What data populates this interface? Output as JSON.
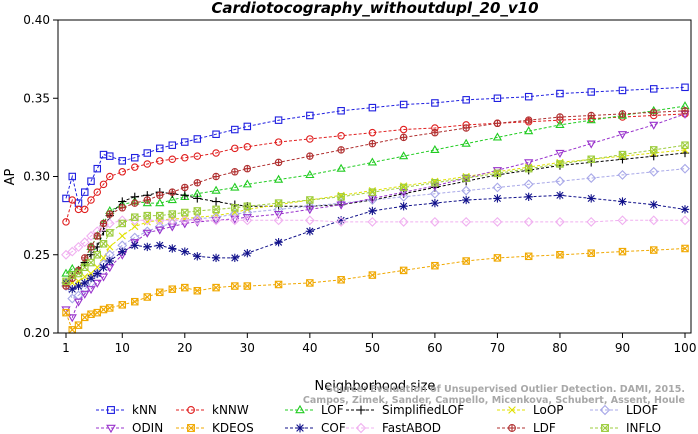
{
  "chart_data": {
    "type": "line",
    "title": "Cardiotocography_withoutdupl_20_v10",
    "xlabel": "Neighborhood size",
    "ylabel": "AP",
    "xlim": [
      1,
      100
    ],
    "ylim": [
      0.2,
      0.4
    ],
    "x_ticks": [
      1,
      10,
      20,
      30,
      40,
      50,
      60,
      70,
      80,
      90,
      100
    ],
    "x_tick_labels": [
      "1",
      "10",
      "20",
      "30",
      "40",
      "50",
      "60",
      "70",
      "80",
      "90",
      "100"
    ],
    "y_ticks": [
      0.2,
      0.25,
      0.3,
      0.35,
      0.4
    ],
    "y_tick_labels": [
      "0.20",
      "0.25",
      "0.30",
      "0.35",
      "0.40"
    ],
    "grid": false,
    "legend_position": "bottom",
    "annotation_line1": "Source: Evaluation of Unsupervised Outlier Detection. DAMI, 2015.",
    "annotation_line2": "Campos, Zimek, Sander, Campello, Micenkova, Schubert, Assent, Houle",
    "x": [
      1,
      2,
      3,
      4,
      5,
      6,
      7,
      8,
      10,
      12,
      14,
      16,
      18,
      20,
      22,
      25,
      28,
      30,
      35,
      40,
      45,
      50,
      55,
      60,
      65,
      70,
      75,
      80,
      85,
      90,
      95,
      100
    ],
    "series": [
      {
        "name": "kNN",
        "color": "#1f1fe0",
        "marker": "square",
        "values": [
          0.286,
          0.3,
          0.283,
          0.29,
          0.297,
          0.305,
          0.314,
          0.313,
          0.31,
          0.312,
          0.315,
          0.318,
          0.32,
          0.322,
          0.324,
          0.327,
          0.33,
          0.332,
          0.336,
          0.339,
          0.342,
          0.344,
          0.346,
          0.347,
          0.349,
          0.35,
          0.351,
          0.353,
          0.354,
          0.355,
          0.356,
          0.357
        ]
      },
      {
        "name": "kNNW",
        "color": "#e01f1f",
        "marker": "circle",
        "values": [
          0.271,
          0.285,
          0.279,
          0.279,
          0.285,
          0.29,
          0.295,
          0.3,
          0.303,
          0.306,
          0.308,
          0.31,
          0.311,
          0.312,
          0.313,
          0.315,
          0.318,
          0.319,
          0.322,
          0.324,
          0.326,
          0.328,
          0.33,
          0.331,
          0.333,
          0.334,
          0.335,
          0.336,
          0.337,
          0.338,
          0.339,
          0.34
        ]
      },
      {
        "name": "LOF",
        "color": "#22cc22",
        "marker": "triangle",
        "values": [
          0.238,
          0.241,
          0.24,
          0.245,
          0.255,
          0.262,
          0.27,
          0.278,
          0.282,
          0.284,
          0.283,
          0.283,
          0.285,
          0.287,
          0.289,
          0.291,
          0.293,
          0.295,
          0.298,
          0.301,
          0.305,
          0.309,
          0.313,
          0.317,
          0.321,
          0.325,
          0.329,
          0.333,
          0.336,
          0.339,
          0.342,
          0.345
        ]
      },
      {
        "name": "SimplifiedLOF",
        "color": "#000000",
        "marker": "plus",
        "values": [
          0.232,
          0.236,
          0.24,
          0.245,
          0.25,
          0.255,
          0.265,
          0.275,
          0.284,
          0.287,
          0.288,
          0.29,
          0.289,
          0.288,
          0.286,
          0.284,
          0.282,
          0.281,
          0.281,
          0.281,
          0.282,
          0.285,
          0.289,
          0.293,
          0.297,
          0.301,
          0.304,
          0.307,
          0.309,
          0.311,
          0.313,
          0.315
        ]
      },
      {
        "name": "LoOP",
        "color": "#e0e000",
        "marker": "cross",
        "values": [
          0.231,
          0.232,
          0.233,
          0.236,
          0.238,
          0.242,
          0.248,
          0.255,
          0.262,
          0.268,
          0.271,
          0.272,
          0.273,
          0.273,
          0.274,
          0.275,
          0.277,
          0.279,
          0.282,
          0.285,
          0.288,
          0.291,
          0.294,
          0.297,
          0.3,
          0.303,
          0.306,
          0.309,
          0.311,
          0.313,
          0.315,
          0.317
        ]
      },
      {
        "name": "LDOF",
        "color": "#a8a8e8",
        "marker": "diamond",
        "values": [
          0.23,
          0.222,
          0.224,
          0.228,
          0.232,
          0.238,
          0.244,
          0.25,
          0.256,
          0.261,
          0.265,
          0.268,
          0.27,
          0.272,
          0.273,
          0.274,
          0.276,
          0.277,
          0.279,
          0.281,
          0.283,
          0.285,
          0.287,
          0.289,
          0.291,
          0.293,
          0.295,
          0.297,
          0.299,
          0.301,
          0.303,
          0.305
        ]
      },
      {
        "name": "ODIN",
        "color": "#9933cc",
        "marker": "triangle-down",
        "values": [
          0.215,
          0.21,
          0.22,
          0.225,
          0.228,
          0.232,
          0.236,
          0.242,
          0.25,
          0.258,
          0.264,
          0.266,
          0.268,
          0.27,
          0.271,
          0.272,
          0.273,
          0.274,
          0.276,
          0.279,
          0.282,
          0.286,
          0.29,
          0.294,
          0.299,
          0.304,
          0.309,
          0.315,
          0.321,
          0.327,
          0.333,
          0.34
        ]
      },
      {
        "name": "KDEOS",
        "color": "#f0a800",
        "marker": "square-x",
        "values": [
          0.213,
          0.202,
          0.205,
          0.21,
          0.212,
          0.213,
          0.215,
          0.216,
          0.218,
          0.22,
          0.223,
          0.226,
          0.228,
          0.229,
          0.227,
          0.229,
          0.23,
          0.23,
          0.231,
          0.232,
          0.234,
          0.237,
          0.24,
          0.243,
          0.246,
          0.248,
          0.249,
          0.25,
          0.251,
          0.252,
          0.253,
          0.254
        ]
      },
      {
        "name": "COF",
        "color": "#10108a",
        "marker": "star",
        "values": [
          0.232,
          0.228,
          0.23,
          0.232,
          0.235,
          0.238,
          0.242,
          0.246,
          0.252,
          0.256,
          0.255,
          0.256,
          0.254,
          0.252,
          0.249,
          0.248,
          0.248,
          0.251,
          0.258,
          0.265,
          0.272,
          0.278,
          0.281,
          0.283,
          0.285,
          0.286,
          0.287,
          0.288,
          0.286,
          0.284,
          0.282,
          0.279
        ]
      },
      {
        "name": "FastABOD",
        "color": "#f0b0f0",
        "marker": "diamond",
        "values": [
          0.25,
          0.252,
          0.255,
          0.258,
          0.262,
          0.265,
          0.268,
          0.27,
          0.272,
          0.272,
          0.272,
          0.272,
          0.272,
          0.272,
          0.272,
          0.272,
          0.272,
          0.272,
          0.272,
          0.272,
          0.271,
          0.271,
          0.271,
          0.271,
          0.271,
          0.271,
          0.271,
          0.271,
          0.271,
          0.272,
          0.272,
          0.272
        ]
      },
      {
        "name": "LDF",
        "color": "#b03030",
        "marker": "circle-plus",
        "values": [
          0.23,
          0.235,
          0.24,
          0.248,
          0.255,
          0.262,
          0.27,
          0.276,
          0.28,
          0.283,
          0.285,
          0.288,
          0.29,
          0.293,
          0.296,
          0.3,
          0.303,
          0.305,
          0.309,
          0.313,
          0.317,
          0.321,
          0.325,
          0.328,
          0.331,
          0.334,
          0.336,
          0.338,
          0.339,
          0.34,
          0.341,
          0.342
        ]
      },
      {
        "name": "INFLO",
        "color": "#9ccc3c",
        "marker": "square-x",
        "values": [
          0.233,
          0.237,
          0.238,
          0.242,
          0.245,
          0.25,
          0.257,
          0.264,
          0.27,
          0.274,
          0.275,
          0.275,
          0.276,
          0.277,
          0.278,
          0.279,
          0.28,
          0.281,
          0.283,
          0.285,
          0.287,
          0.29,
          0.293,
          0.296,
          0.299,
          0.302,
          0.305,
          0.308,
          0.311,
          0.314,
          0.317,
          0.32
        ]
      }
    ]
  }
}
